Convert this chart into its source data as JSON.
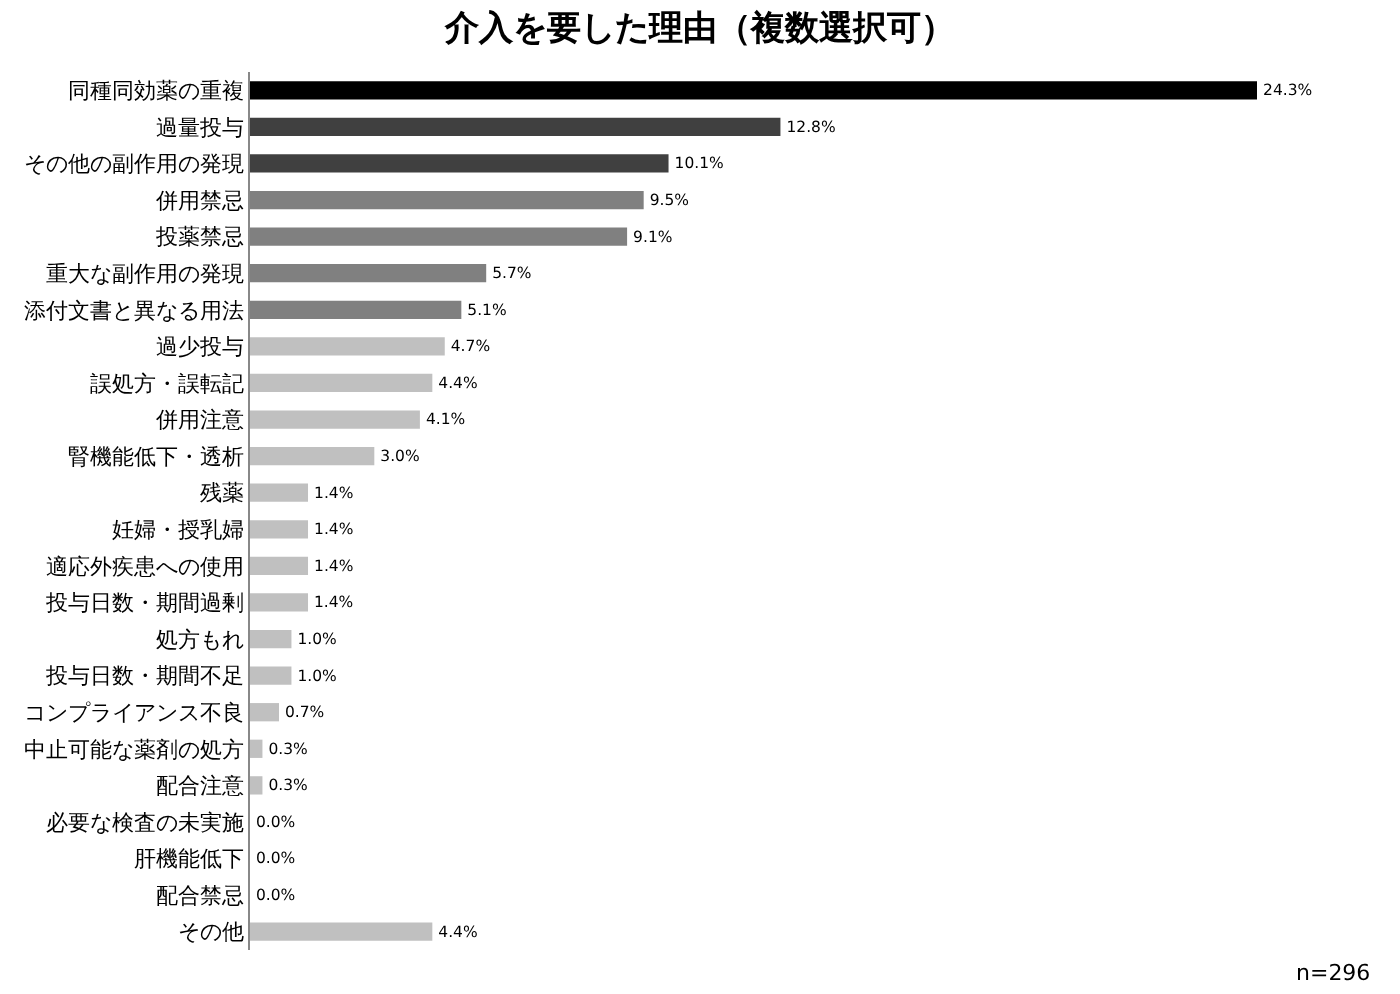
{
  "chart_data": {
    "type": "bar",
    "orientation": "horizontal",
    "title": "介入を要した理由（複数選択可）",
    "categories": [
      "同種同効薬の重複",
      "過量投与",
      "その他の副作用の発現",
      "併用禁忌",
      "投薬禁忌",
      "重大な副作用の発現",
      "添付文書と異なる用法",
      "過少投与",
      "誤処方・誤転記",
      "併用注意",
      "腎機能低下・透析",
      "残薬",
      "妊婦・授乳婦",
      "適応外疾患への使用",
      "投与日数・期間過剰",
      "処方もれ",
      "投与日数・期間不足",
      "コンプライアンス不良",
      "中止可能な薬剤の処方",
      "配合注意",
      "必要な検査の未実施",
      "肝機能低下",
      "配合禁忌",
      "その他"
    ],
    "values": [
      24.3,
      12.8,
      10.1,
      9.5,
      9.1,
      5.7,
      5.1,
      4.7,
      4.4,
      4.1,
      3.0,
      1.4,
      1.4,
      1.4,
      1.4,
      1.0,
      1.0,
      0.7,
      0.3,
      0.3,
      0.0,
      0.0,
      0.0,
      4.4
    ],
    "value_labels": [
      "24.3%",
      "12.8%",
      "10.1%",
      "9.5%",
      "9.1%",
      "5.7%",
      "5.1%",
      "4.7%",
      "4.4%",
      "4.1%",
      "3.0%",
      "1.4%",
      "1.4%",
      "1.4%",
      "1.4%",
      "1.0%",
      "1.0%",
      "0.7%",
      "0.3%",
      "0.3%",
      "0.0%",
      "0.0%",
      "0.0%",
      "4.4%"
    ],
    "colors": [
      "#000000",
      "#404040",
      "#404040",
      "#808080",
      "#808080",
      "#808080",
      "#808080",
      "#c0c0c0",
      "#c0c0c0",
      "#c0c0c0",
      "#c0c0c0",
      "#c0c0c0",
      "#c0c0c0",
      "#c0c0c0",
      "#c0c0c0",
      "#c0c0c0",
      "#c0c0c0",
      "#c0c0c0",
      "#c0c0c0",
      "#c0c0c0",
      "#c0c0c0",
      "#c0c0c0",
      "#c0c0c0",
      "#c0c0c0"
    ],
    "annotations": [
      "n=296"
    ]
  }
}
